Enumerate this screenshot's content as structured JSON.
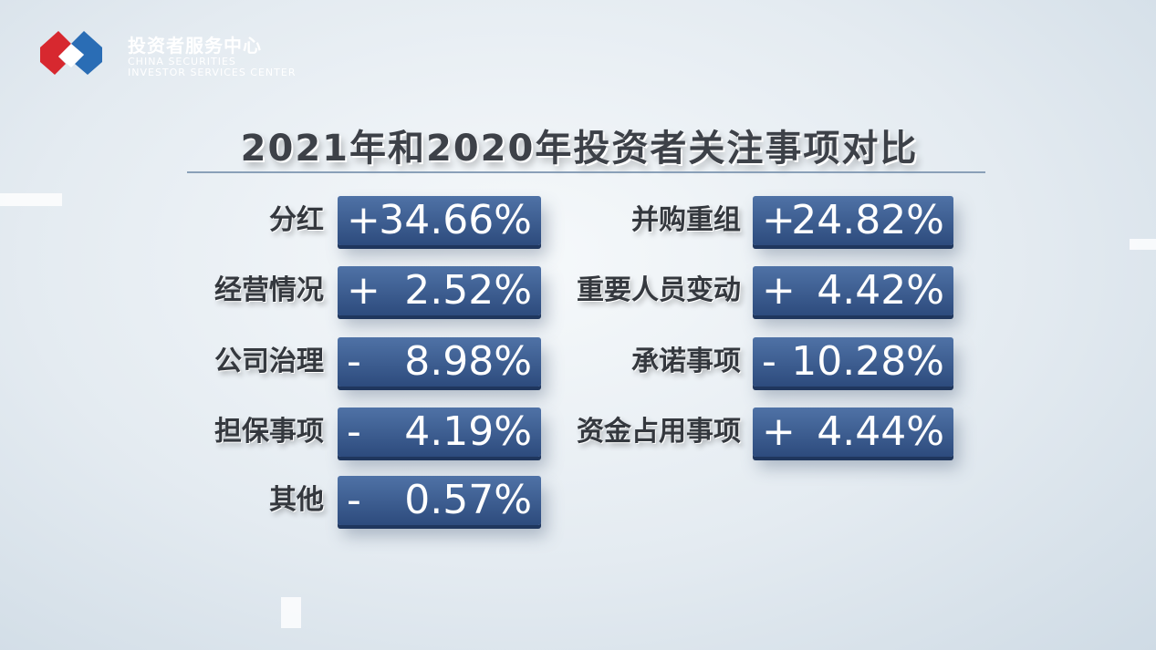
{
  "header": {
    "org_cn": "投资者服务中心",
    "org_en_1": "CHINA SECURITIES",
    "org_en_2": "INVESTOR SERVICES CENTER"
  },
  "title": "2021年和2020年投资者关注事项对比",
  "left": [
    {
      "label": "分红",
      "sign": "+",
      "value": "34.66%"
    },
    {
      "label": "经营情况",
      "sign": "+",
      "value": "2.52%"
    },
    {
      "label": "公司治理",
      "sign": "-",
      "value": "8.98%"
    },
    {
      "label": "担保事项",
      "sign": "-",
      "value": "4.19%"
    },
    {
      "label": "其他",
      "sign": "-",
      "value": "0.57%"
    }
  ],
  "right": [
    {
      "label": "并购重组",
      "sign": "+",
      "value": "24.82%"
    },
    {
      "label": "重要人员变动",
      "sign": "+",
      "value": "4.42%"
    },
    {
      "label": "承诺事项",
      "sign": "-",
      "value": "10.28%"
    },
    {
      "label": "资金占用事项",
      "sign": "+",
      "value": "4.44%"
    }
  ]
}
